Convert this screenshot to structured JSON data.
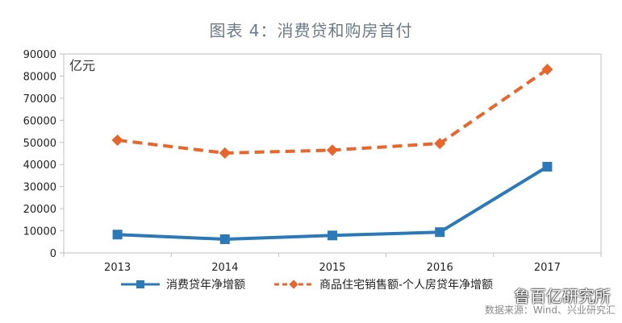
{
  "title": "图表 4：消费贷和购房首付",
  "watermark": "鲁百亿研究所",
  "source": "数据来源：Wind、兴业研究汇",
  "chart_data": {
    "type": "line",
    "unit_label": "亿元",
    "categories": [
      "2013",
      "2014",
      "2015",
      "2016",
      "2017"
    ],
    "ylim": [
      0,
      90000
    ],
    "yticks": [
      0,
      10000,
      20000,
      30000,
      40000,
      50000,
      60000,
      70000,
      80000,
      90000
    ],
    "grid": false,
    "legend_position": "bottom",
    "series": [
      {
        "name": "消费贷年净增额",
        "values": [
          8300,
          6200,
          7900,
          9400,
          39000
        ],
        "color": "#2b79b8",
        "style": "solid",
        "marker": "square"
      },
      {
        "name": "商品住宅销售额-个人房贷年净增额",
        "values": [
          51000,
          45200,
          46500,
          49500,
          83000
        ],
        "color": "#e8662b",
        "style": "dashed",
        "marker": "diamond"
      }
    ]
  }
}
